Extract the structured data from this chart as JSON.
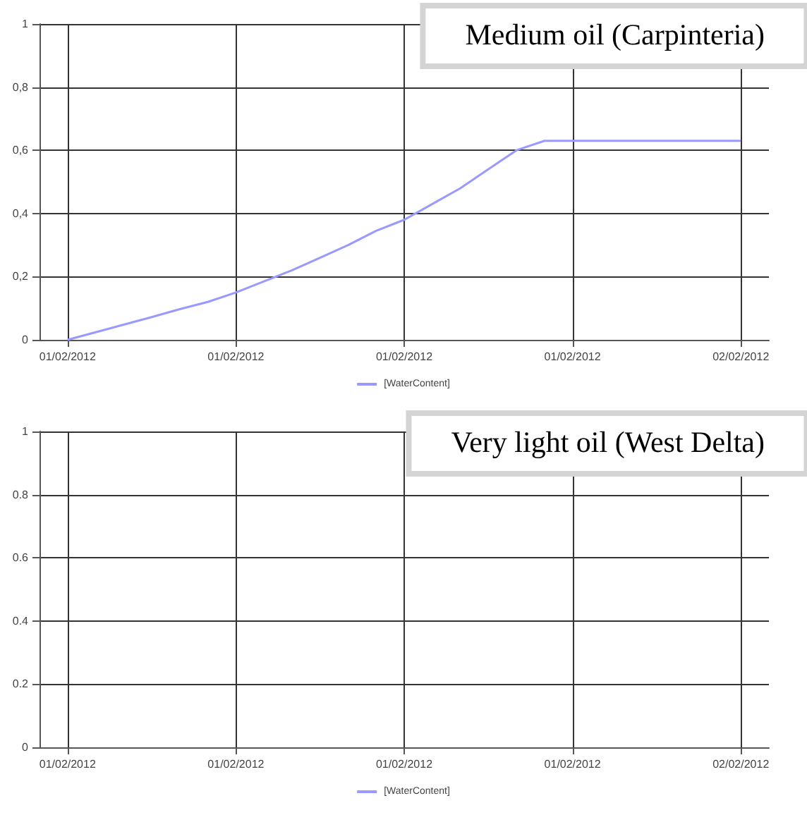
{
  "chart_data": [
    {
      "type": "line",
      "title": "Medium oil (Carpinteria)",
      "categories": [
        null,
        "01/02/2012",
        null,
        null,
        null,
        null,
        null,
        "01/02/2012",
        null,
        null,
        null,
        null,
        null,
        "01/02/2012",
        null,
        null,
        null,
        null,
        null,
        "01/02/2012",
        null,
        null,
        null,
        null,
        null,
        "02/02/2012",
        null
      ],
      "series": [
        {
          "name": "[WaterContent]",
          "color": "#9999ff",
          "values": [
            null,
            0,
            0.024,
            0.048,
            0.072,
            0.097,
            0.12,
            0.15,
            0.185,
            0.22,
            0.26,
            0.3,
            0.345,
            0.38,
            0.43,
            0.48,
            0.54,
            0.6,
            0.63,
            0.63,
            0.63,
            0.63,
            0.63,
            0.63,
            0.63,
            0.63,
            null
          ]
        }
      ],
      "ylim": [
        0,
        1
      ],
      "yticks": [
        0,
        {
          "value": 0.2,
          "label": "0,2"
        },
        {
          "value": 0.4,
          "label": "0,4"
        },
        {
          "value": 0.6,
          "label": "0,6"
        },
        {
          "value": 0.8,
          "label": "0,8"
        },
        1
      ],
      "grid": true,
      "legend": "bottom",
      "marker": "none",
      "line_style": "solid"
    },
    {
      "type": "line",
      "title": "Very light oil (West Delta)",
      "categories": [
        null,
        "01/02/2012",
        null,
        null,
        null,
        null,
        null,
        "01/02/2012",
        null,
        null,
        null,
        null,
        null,
        "01/02/2012",
        null,
        null,
        null,
        null,
        null,
        "01/02/2012",
        null,
        null,
        null,
        null,
        null,
        "02/02/2012",
        null
      ],
      "series": [
        {
          "name": "[WaterContent]",
          "color": "#9999ff",
          "values": [
            null,
            null,
            null,
            null,
            null,
            null,
            null,
            null,
            null,
            null,
            null,
            null,
            null,
            null,
            null,
            null,
            null,
            null,
            null,
            null,
            null,
            null,
            null,
            null,
            null,
            null,
            null
          ]
        }
      ],
      "ylim": [
        0,
        1
      ],
      "yticks": [
        0,
        0.2,
        0.4,
        0.6,
        0.8,
        1
      ],
      "grid": true,
      "legend": "bottom",
      "marker": "none",
      "line_style": "solid"
    }
  ]
}
